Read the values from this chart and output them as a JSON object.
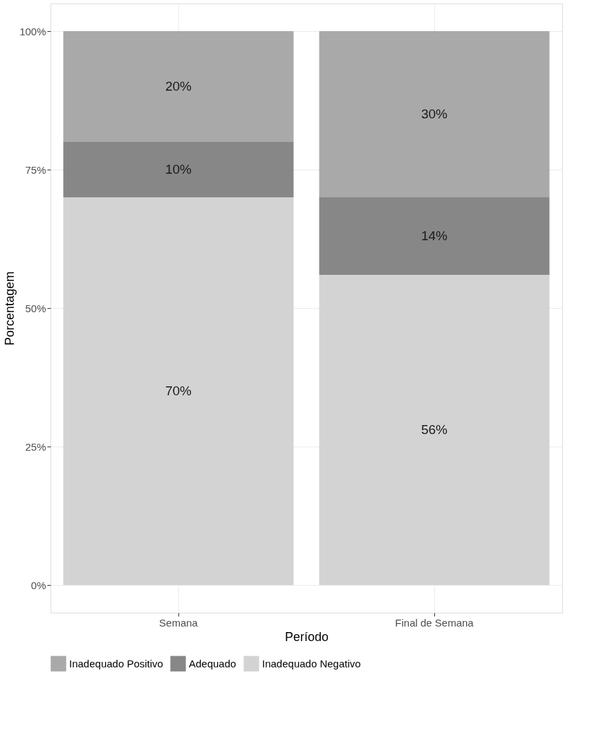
{
  "chart_data": {
    "type": "bar",
    "stacked": true,
    "xlabel": "Período",
    "ylabel": "Porcentagem",
    "categories": [
      "Semana",
      "Final de Semana"
    ],
    "series": [
      {
        "name": "Inadequado Negativo",
        "color": "#d3d3d3",
        "values": [
          70,
          56
        ],
        "value_labels": [
          "70%",
          "56%"
        ]
      },
      {
        "name": "Adequado",
        "color": "#878787",
        "values": [
          10,
          14
        ],
        "value_labels": [
          "10%",
          "14%"
        ]
      },
      {
        "name": "Inadequado Positivo",
        "color": "#a9a9a9",
        "values": [
          20,
          30
        ],
        "value_labels": [
          "20%",
          "30%"
        ]
      }
    ],
    "ylim": [
      -5,
      105
    ],
    "yticks": [
      {
        "value": 0,
        "label": "0%"
      },
      {
        "value": 25,
        "label": "25%"
      },
      {
        "value": 50,
        "label": "50%"
      },
      {
        "value": 75,
        "label": "75%"
      },
      {
        "value": 100,
        "label": "100%"
      }
    ],
    "grid": true,
    "legend": "bottom"
  }
}
